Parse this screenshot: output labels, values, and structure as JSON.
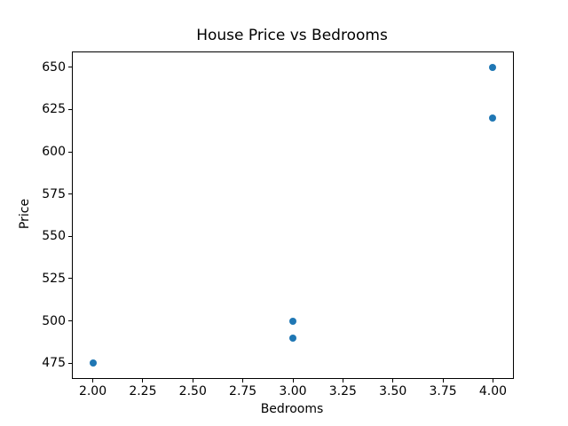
{
  "chart_data": {
    "type": "scatter",
    "title": "House Price vs Bedrooms",
    "xlabel": "Bedrooms",
    "ylabel": "Price",
    "points": [
      {
        "x": 2,
        "y": 475
      },
      {
        "x": 3,
        "y": 490
      },
      {
        "x": 3,
        "y": 500
      },
      {
        "x": 4,
        "y": 620
      },
      {
        "x": 4,
        "y": 650
      }
    ],
    "xticks": [
      "2.00",
      "2.25",
      "2.50",
      "2.75",
      "3.00",
      "3.25",
      "3.50",
      "3.75",
      "4.00"
    ],
    "yticks": [
      "475",
      "500",
      "525",
      "550",
      "575",
      "600",
      "625",
      "650"
    ],
    "xlim": [
      1.9,
      4.1
    ],
    "ylim": [
      466.25,
      658.75
    ],
    "marker_color": "#1f77b4",
    "background_color": "#ffffff",
    "grid": false,
    "legend": null
  }
}
